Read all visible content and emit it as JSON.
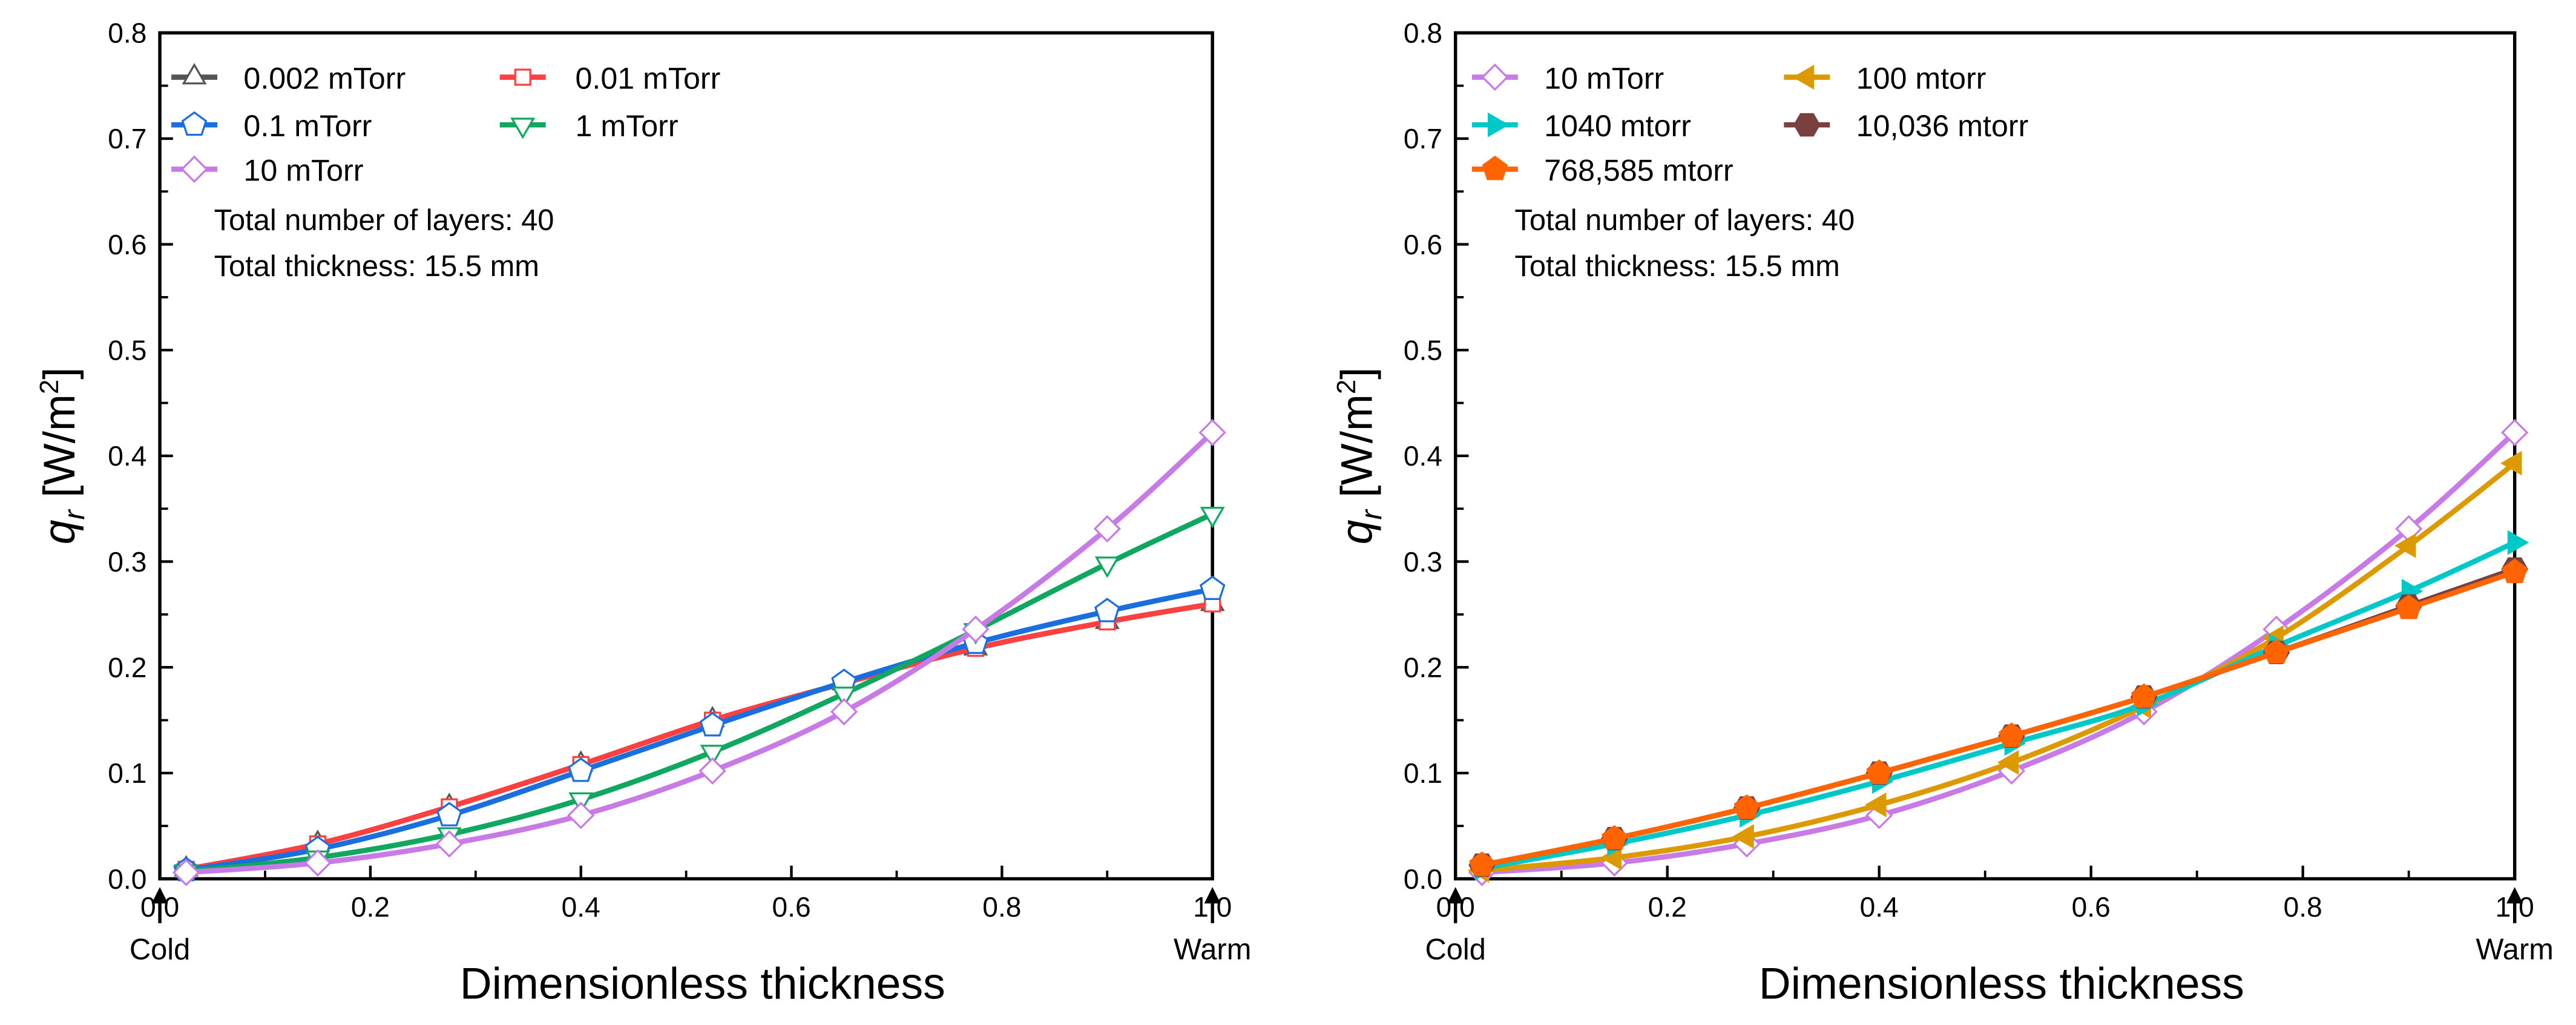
{
  "chart_data": [
    {
      "type": "line",
      "xlabel": "Dimensionless thickness",
      "ylabel": "q_r [W/m2]",
      "ylabel_main": "q",
      "ylabel_sub": "r",
      "ylabel_unit": " [W/m",
      "ylabel_sup": "2",
      "ylabel_close": "]",
      "xlim": [
        0,
        1.0
      ],
      "ylim": [
        0,
        0.8
      ],
      "xticks": [
        "0.0",
        "0.2",
        "0.4",
        "0.6",
        "0.8",
        "1.0"
      ],
      "yticks": [
        "0.0",
        "0.1",
        "0.2",
        "0.3",
        "0.4",
        "0.5",
        "0.6",
        "0.7",
        "0.8"
      ],
      "cold_label": "Cold",
      "warm_label": "Warm",
      "annotations": [
        "Total number of layers: 40",
        "Total thickness: 15.5 mm"
      ],
      "legend_position": "top-left",
      "x": [
        0.025,
        0.15,
        0.275,
        0.4,
        0.525,
        0.65,
        0.775,
        0.9,
        1.0
      ],
      "series": [
        {
          "name": "0.002 mTorr",
          "color": "#555555",
          "marker": "triangle-up",
          "filled": false,
          "values": [
            0.009,
            0.033,
            0.068,
            0.108,
            0.15,
            0.185,
            0.218,
            0.243,
            0.26
          ]
        },
        {
          "name": "0.01 mTorr",
          "color": "#ff4040",
          "marker": "square",
          "filled": false,
          "values": [
            0.009,
            0.033,
            0.068,
            0.108,
            0.15,
            0.185,
            0.218,
            0.243,
            0.26
          ]
        },
        {
          "name": "0.1 mTorr",
          "color": "#1a6fe0",
          "marker": "pentagon",
          "filled": false,
          "values": [
            0.008,
            0.028,
            0.06,
            0.102,
            0.145,
            0.186,
            0.223,
            0.253,
            0.274
          ]
        },
        {
          "name": "1 mTorr",
          "color": "#10a860",
          "marker": "triangle-down",
          "filled": false,
          "values": [
            0.007,
            0.02,
            0.042,
            0.075,
            0.12,
            0.175,
            0.235,
            0.298,
            0.345
          ]
        },
        {
          "name": "10 mTorr",
          "color": "#c87be6",
          "marker": "diamond",
          "filled": false,
          "values": [
            0.006,
            0.015,
            0.033,
            0.06,
            0.102,
            0.158,
            0.236,
            0.331,
            0.422
          ]
        }
      ]
    },
    {
      "type": "line",
      "xlabel": "Dimensionless thickness",
      "ylabel": "q_r [W/m2]",
      "ylabel_main": "q",
      "ylabel_sub": "r",
      "ylabel_unit": " [W/m",
      "ylabel_sup": "2",
      "ylabel_close": "]",
      "xlim": [
        0,
        1.0
      ],
      "ylim": [
        0,
        0.8
      ],
      "xticks": [
        "0.0",
        "0.2",
        "0.4",
        "0.6",
        "0.8",
        "1.0"
      ],
      "yticks": [
        "0.0",
        "0.1",
        "0.2",
        "0.3",
        "0.4",
        "0.5",
        "0.6",
        "0.7",
        "0.8"
      ],
      "cold_label": "Cold",
      "warm_label": "Warm",
      "annotations": [
        "Total number of layers: 40",
        "Total thickness: 15.5 mm"
      ],
      "legend_position": "top-left",
      "x": [
        0.025,
        0.15,
        0.275,
        0.4,
        0.525,
        0.65,
        0.775,
        0.9,
        1.0
      ],
      "series": [
        {
          "name": "10 mTorr",
          "color": "#c87be6",
          "marker": "diamond",
          "filled": false,
          "values": [
            0.006,
            0.015,
            0.033,
            0.06,
            0.102,
            0.158,
            0.236,
            0.331,
            0.422
          ]
        },
        {
          "name": "100 mtorr",
          "color": "#dc9a00",
          "marker": "triangle-left",
          "filled": true,
          "values": [
            0.008,
            0.02,
            0.04,
            0.07,
            0.11,
            0.163,
            0.228,
            0.315,
            0.393
          ]
        },
        {
          "name": "1040 mtorr",
          "color": "#00c8c8",
          "marker": "triangle-right",
          "filled": true,
          "values": [
            0.01,
            0.033,
            0.06,
            0.092,
            0.128,
            0.165,
            0.22,
            0.272,
            0.318
          ]
        },
        {
          "name": "10,036 mtorr",
          "color": "#7a4040",
          "marker": "hexagon",
          "filled": true,
          "values": [
            0.013,
            0.038,
            0.067,
            0.1,
            0.135,
            0.172,
            0.214,
            0.258,
            0.293
          ]
        },
        {
          "name": "768,585 mtorr",
          "color": "#ff6400",
          "marker": "pentagon",
          "filled": true,
          "values": [
            0.013,
            0.038,
            0.067,
            0.1,
            0.135,
            0.172,
            0.214,
            0.256,
            0.29
          ]
        }
      ]
    }
  ]
}
